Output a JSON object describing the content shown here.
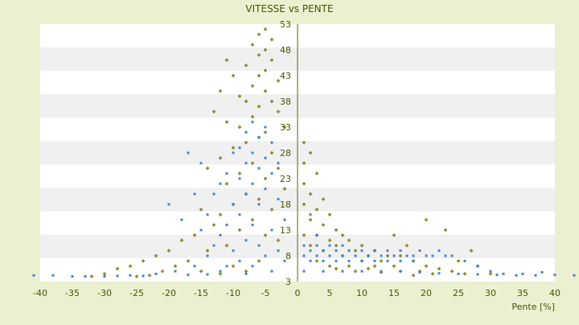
{
  "chart_data": {
    "type": "scatter",
    "title": "VITESSE vs PENTE",
    "xlabel": "Pente [%]",
    "ylabel": "",
    "xlim": [
      -40,
      40
    ],
    "ylim": [
      3,
      53
    ],
    "x_ticks": [
      -40,
      -35,
      -30,
      -25,
      -20,
      -15,
      -10,
      -5,
      0,
      5,
      10,
      15,
      20,
      25,
      30,
      35,
      40
    ],
    "y_ticks": [
      3,
      8,
      13,
      18,
      23,
      28,
      33,
      38,
      43,
      48,
      53
    ],
    "y_axis_at_x": 0,
    "grid": "alternating horizontal bands",
    "colors": {
      "background": "#ebf1d0",
      "plot_band_light": "#ffffff",
      "plot_band_dark": "#f0f0f0",
      "axis_text": "#4a5200",
      "axis_line": "#5a6414",
      "series_olive": "#9a9a1e",
      "series_blue": "#3f87cc"
    },
    "series": [
      {
        "color": "#9a9a1e",
        "marker": "diamond",
        "points": [
          [
            -5,
            52
          ],
          [
            -6,
            51
          ],
          [
            -4,
            50
          ],
          [
            -7,
            49
          ],
          [
            -5,
            48
          ],
          [
            -6,
            47
          ],
          [
            -4,
            46
          ],
          [
            -8,
            45
          ],
          [
            -5,
            44
          ],
          [
            -6,
            43
          ],
          [
            -3,
            42
          ],
          [
            -7,
            41
          ],
          [
            -5,
            40
          ],
          [
            -9,
            39
          ],
          [
            -4,
            38
          ],
          [
            -6,
            37
          ],
          [
            -11,
            46
          ],
          [
            -10,
            43
          ],
          [
            -12,
            40
          ],
          [
            -8,
            38
          ],
          [
            -3,
            36
          ],
          [
            -7,
            35
          ],
          [
            -9,
            33
          ],
          [
            -5,
            32
          ],
          [
            -13,
            36
          ],
          [
            -11,
            34
          ],
          [
            -2,
            33
          ],
          [
            -6,
            31
          ],
          [
            -8,
            30
          ],
          [
            -10,
            29
          ],
          [
            -4,
            28
          ],
          [
            -12,
            27
          ],
          [
            -7,
            26
          ],
          [
            -3,
            25
          ],
          [
            -9,
            24
          ],
          [
            -5,
            23
          ],
          [
            -14,
            25
          ],
          [
            -11,
            22
          ],
          [
            -2,
            21
          ],
          [
            -8,
            20
          ],
          [
            -6,
            19
          ],
          [
            -10,
            18
          ],
          [
            -4,
            17
          ],
          [
            -12,
            16
          ],
          [
            -7,
            15
          ],
          [
            -15,
            17
          ],
          [
            -13,
            14
          ],
          [
            -9,
            13
          ],
          [
            -5,
            12
          ],
          [
            -3,
            11
          ],
          [
            -16,
            12
          ],
          [
            -11,
            10
          ],
          [
            -18,
            11
          ],
          [
            -14,
            9
          ],
          [
            -20,
            9
          ],
          [
            -22,
            8
          ],
          [
            -17,
            7
          ],
          [
            -24,
            7
          ],
          [
            -19,
            6
          ],
          [
            -26,
            6
          ],
          [
            -28,
            5.5
          ],
          [
            -21,
            5
          ],
          [
            -15,
            5
          ],
          [
            -30,
            4.5
          ],
          [
            -23,
            4.2
          ],
          [
            -12,
            4.5
          ],
          [
            -8,
            5
          ],
          [
            -32,
            4
          ],
          [
            -25,
            4
          ],
          [
            -10,
            6
          ],
          [
            -6,
            7
          ],
          [
            1,
            30
          ],
          [
            2,
            28
          ],
          [
            1,
            26
          ],
          [
            3,
            24
          ],
          [
            1,
            22
          ],
          [
            2,
            20
          ],
          [
            4,
            19
          ],
          [
            1,
            18
          ],
          [
            3,
            17
          ],
          [
            5,
            16
          ],
          [
            2,
            15
          ],
          [
            4,
            14
          ],
          [
            6,
            13
          ],
          [
            1,
            12
          ],
          [
            3,
            12
          ],
          [
            7,
            12
          ],
          [
            8,
            11
          ],
          [
            5,
            11
          ],
          [
            10,
            10
          ],
          [
            2,
            10
          ],
          [
            6,
            10
          ],
          [
            9,
            9
          ],
          [
            12,
            9
          ],
          [
            4,
            9
          ],
          [
            11,
            8
          ],
          [
            14,
            8
          ],
          [
            7,
            8
          ],
          [
            16,
            8
          ],
          [
            3,
            7
          ],
          [
            10,
            7
          ],
          [
            13,
            7
          ],
          [
            18,
            7
          ],
          [
            5,
            6
          ],
          [
            8,
            6
          ],
          [
            12,
            6
          ],
          [
            15,
            6
          ],
          [
            20,
            6
          ],
          [
            22,
            5.5
          ],
          [
            6,
            5.5
          ],
          [
            11,
            5.5
          ],
          [
            16,
            5
          ],
          [
            19,
            5
          ],
          [
            24,
            5
          ],
          [
            9,
            5
          ],
          [
            13,
            4.8
          ],
          [
            21,
            4.5
          ],
          [
            26,
            4.5
          ],
          [
            18,
            4.2
          ],
          [
            23,
            13
          ],
          [
            27,
            9
          ],
          [
            20,
            15
          ],
          [
            15,
            12
          ],
          [
            17,
            10
          ],
          [
            25,
            7
          ],
          [
            28,
            6
          ],
          [
            30,
            4.5
          ]
        ]
      },
      {
        "color": "#3f87cc",
        "marker": "square",
        "points": [
          [
            -7,
            34
          ],
          [
            -5,
            33
          ],
          [
            -8,
            32
          ],
          [
            -6,
            31
          ],
          [
            -4,
            30
          ],
          [
            -9,
            29
          ],
          [
            -7,
            28
          ],
          [
            -5,
            27
          ],
          [
            -10,
            28
          ],
          [
            -3,
            26
          ],
          [
            -8,
            26
          ],
          [
            -6,
            25
          ],
          [
            -11,
            24
          ],
          [
            -4,
            24
          ],
          [
            -9,
            23
          ],
          [
            -7,
            22
          ],
          [
            -12,
            22
          ],
          [
            -5,
            21
          ],
          [
            -13,
            20
          ],
          [
            -8,
            20
          ],
          [
            -3,
            19
          ],
          [
            -10,
            18
          ],
          [
            -6,
            18
          ],
          [
            -14,
            16
          ],
          [
            -9,
            16
          ],
          [
            -2,
            15
          ],
          [
            -11,
            14
          ],
          [
            -7,
            14
          ],
          [
            -15,
            13
          ],
          [
            -4,
            13
          ],
          [
            -12,
            12
          ],
          [
            -8,
            11
          ],
          [
            -16,
            20
          ],
          [
            -17,
            28
          ],
          [
            -15,
            26
          ],
          [
            -6,
            10
          ],
          [
            -10,
            9
          ],
          [
            -3,
            9
          ],
          [
            -14,
            8
          ],
          [
            -5,
            8
          ],
          [
            -20,
            18
          ],
          [
            -18,
            15
          ],
          [
            -13,
            10
          ],
          [
            -9,
            7
          ],
          [
            -2,
            7
          ],
          [
            -11,
            6
          ],
          [
            -7,
            6
          ],
          [
            -16,
            6
          ],
          [
            -4,
            5
          ],
          [
            -19,
            5
          ],
          [
            -12,
            5
          ],
          [
            -22,
            4.5
          ],
          [
            -8,
            4.5
          ],
          [
            -26,
            4.2
          ],
          [
            -30,
            4
          ],
          [
            -35,
            4
          ],
          [
            -38,
            4.2
          ],
          [
            -41,
            4.2
          ],
          [
            -33,
            4
          ],
          [
            -28,
            4.1
          ],
          [
            -24,
            4.1
          ],
          [
            -17,
            4.3
          ],
          [
            -14,
            4.4
          ],
          [
            1,
            10
          ],
          [
            2,
            9
          ],
          [
            3,
            10
          ],
          [
            4,
            9
          ],
          [
            5,
            8
          ],
          [
            6,
            9
          ],
          [
            7,
            8
          ],
          [
            8,
            9
          ],
          [
            9,
            8
          ],
          [
            10,
            9
          ],
          [
            11,
            8
          ],
          [
            12,
            9
          ],
          [
            13,
            8
          ],
          [
            14,
            9
          ],
          [
            15,
            8
          ],
          [
            16,
            9
          ],
          [
            17,
            8
          ],
          [
            18,
            8
          ],
          [
            19,
            9
          ],
          [
            20,
            8
          ],
          [
            21,
            8
          ],
          [
            22,
            9
          ],
          [
            23,
            8
          ],
          [
            24,
            8
          ],
          [
            1,
            8
          ],
          [
            3,
            8
          ],
          [
            5,
            10
          ],
          [
            7,
            10
          ],
          [
            2,
            7
          ],
          [
            4,
            7
          ],
          [
            6,
            7
          ],
          [
            8,
            7
          ],
          [
            10,
            7
          ],
          [
            12,
            7
          ],
          [
            14,
            7
          ],
          [
            16,
            7
          ],
          [
            18,
            7
          ],
          [
            1,
            5
          ],
          [
            4,
            5
          ],
          [
            7,
            5
          ],
          [
            10,
            5
          ],
          [
            13,
            5
          ],
          [
            16,
            5
          ],
          [
            19,
            4.8
          ],
          [
            22,
            4.6
          ],
          [
            25,
            4.5
          ],
          [
            28,
            4.4
          ],
          [
            31,
            4.3
          ],
          [
            34,
            4.2
          ],
          [
            37,
            4.2
          ],
          [
            40,
            4.3
          ],
          [
            43,
            4.2
          ],
          [
            26,
            7
          ],
          [
            28,
            6
          ],
          [
            30,
            5
          ],
          [
            32,
            4.5
          ],
          [
            35,
            4.5
          ],
          [
            38,
            4.8
          ],
          [
            3,
            12
          ],
          [
            2,
            16
          ]
        ]
      }
    ]
  }
}
